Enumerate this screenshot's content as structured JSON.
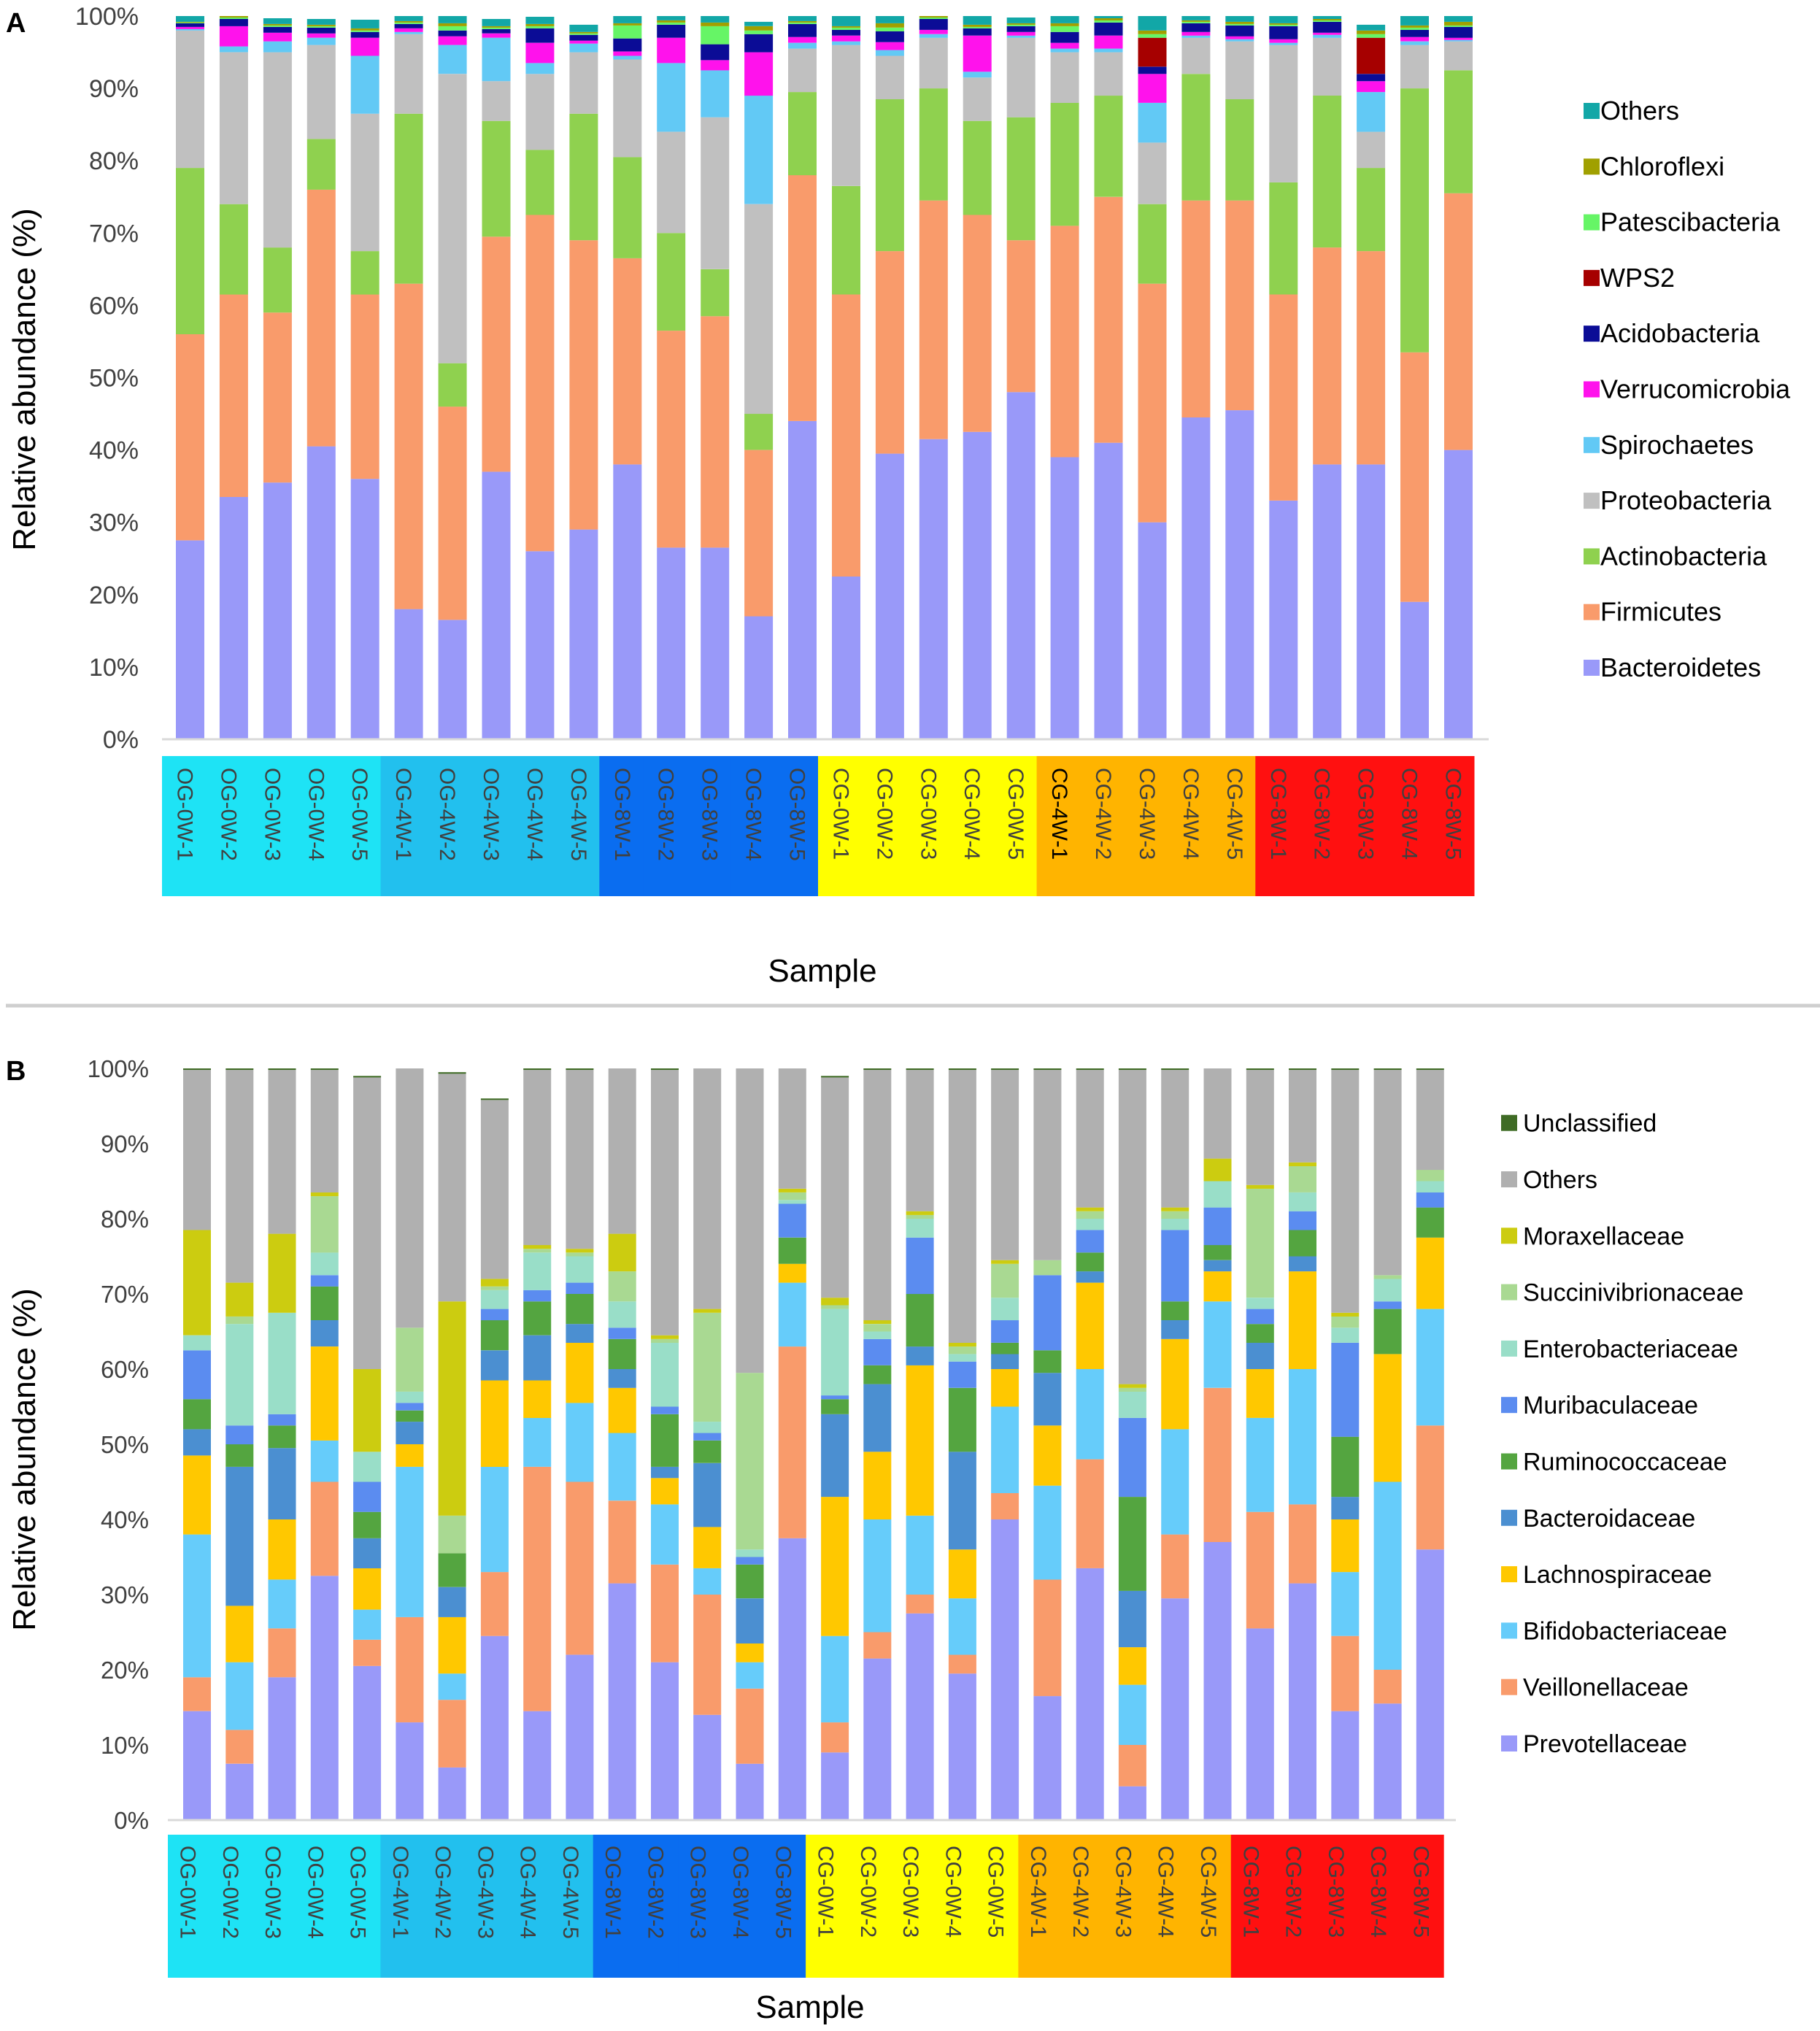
{
  "panels": {
    "a": {
      "letter": "A"
    },
    "b": {
      "letter": "B"
    }
  },
  "chart_data": [
    {
      "type": "bar",
      "stacked": true,
      "panel": "A",
      "title": "",
      "xlabel": "Sample",
      "ylabel": "Relative abundance (%)",
      "ylim": [
        0,
        100
      ],
      "yticks": [
        "0%",
        "10%",
        "20%",
        "30%",
        "40%",
        "50%",
        "60%",
        "70%",
        "80%",
        "90%",
        "100%"
      ],
      "categories": [
        "OG-0W-1",
        "OG-0W-2",
        "OG-0W-3",
        "OG-0W-4",
        "OG-0W-5",
        "OG-4W-1",
        "OG-4W-2",
        "OG-4W-3",
        "OG-4W-4",
        "OG-4W-5",
        "OG-8W-1",
        "OG-8W-2",
        "OG-8W-3",
        "OG-8W-4",
        "OG-8W-5",
        "CG-0W-1",
        "CG-0W-2",
        "CG-0W-3",
        "CG-0W-4",
        "CG-0W-5",
        "CG-4W-1",
        "CG-4W-2",
        "CG-4W-3",
        "CG-4W-4",
        "CG-4W-5",
        "CG-8W-1",
        "CG-8W-2",
        "CG-8W-3",
        "CG-8W-4",
        "CG-8W-5"
      ],
      "group_colors": [
        "#1ee3f5",
        "#1ee3f5",
        "#1ee3f5",
        "#1ee3f5",
        "#1ee3f5",
        "#22c0ee",
        "#22c0ee",
        "#22c0ee",
        "#22c0ee",
        "#22c0ee",
        "#0a6df0",
        "#0a6df0",
        "#0a6df0",
        "#0a6df0",
        "#0a6df0",
        "#ffff00",
        "#ffff00",
        "#ffff00",
        "#ffff00",
        "#ffff00",
        "#ffb400",
        "#ffb400",
        "#ffb400",
        "#ffb400",
        "#ffb400",
        "#ff1010",
        "#ff1010",
        "#ff1010",
        "#ff1010",
        "#ff1010"
      ],
      "label_colors": [
        "#404040",
        "#404040",
        "#404040",
        "#404040",
        "#404040",
        "#404040",
        "#404040",
        "#404040",
        "#404040",
        "#404040",
        "#404040",
        "#404040",
        "#404040",
        "#404040",
        "#404040",
        "#404040",
        "#404040",
        "#404040",
        "#404040",
        "#404040",
        "#000000",
        "#404040",
        "#404040",
        "#404040",
        "#404040",
        "#404040",
        "#404040",
        "#404040",
        "#404040",
        "#404040"
      ],
      "legend_position": "right",
      "series": [
        {
          "name": "Bacteroidetes",
          "color": "#9999f9",
          "values": [
            27.5,
            33.5,
            35.5,
            40.5,
            36,
            18,
            16.5,
            37,
            26,
            29,
            38,
            26.5,
            26.5,
            17,
            44,
            22.5,
            39.5,
            41.5,
            42.5,
            48,
            39,
            41,
            30,
            44.5,
            45.5,
            33,
            38,
            38,
            19,
            40
          ]
        },
        {
          "name": "Firmicutes",
          "color": "#f99b6b",
          "values": [
            28.5,
            28,
            23.5,
            35.5,
            25.5,
            45,
            29.5,
            32.5,
            46.5,
            40,
            28.5,
            30,
            32,
            23,
            34,
            39,
            28,
            33,
            30,
            21,
            32,
            34,
            33,
            30,
            29,
            28.5,
            30,
            29.5,
            34.5,
            35.5
          ]
        },
        {
          "name": "Actinobacteria",
          "color": "#8fd14f",
          "values": [
            23,
            12.5,
            9,
            7,
            6,
            23.5,
            6,
            16,
            9,
            17.5,
            14,
            13.5,
            6.5,
            5,
            11.5,
            15,
            21,
            15.5,
            13,
            17,
            17,
            14,
            11,
            17.5,
            14,
            15.5,
            21,
            11.5,
            36.5,
            17
          ]
        },
        {
          "name": "Proteobacteria",
          "color": "#c0c0c0",
          "values": [
            19,
            21,
            27,
            13,
            19,
            11,
            40,
            5.5,
            10.5,
            8.5,
            13.5,
            14,
            21,
            29,
            6,
            19.5,
            6,
            7,
            6,
            11,
            7,
            6,
            8.5,
            5,
            8,
            19,
            8,
            5,
            6,
            4
          ]
        },
        {
          "name": "Spirochaetes",
          "color": "#62c9f5",
          "values": [
            0.2,
            0.8,
            1.5,
            1,
            8,
            0.3,
            4,
            6,
            1.5,
            1.2,
            0.5,
            9.5,
            6.5,
            15,
            0.8,
            0.5,
            0.8,
            0.5,
            0.8,
            0.3,
            0.5,
            0.5,
            5.5,
            0.3,
            0.3,
            0.3,
            0.4,
            5.5,
            0.5,
            0.2
          ]
        },
        {
          "name": "Verrucomicrobia",
          "color": "#ff12ec",
          "values": [
            0.3,
            2.8,
            1.2,
            0.6,
            2.5,
            0.5,
            1.2,
            0.6,
            2.8,
            0.4,
            0.6,
            3.5,
            1.4,
            6,
            0.8,
            0.8,
            1.1,
            0.6,
            5,
            0.5,
            0.8,
            1.8,
            4,
            0.5,
            0.4,
            0.5,
            0.3,
            1.5,
            0.6,
            0.3
          ]
        },
        {
          "name": "Acidobacteria",
          "color": "#0b0c96",
          "values": [
            0.5,
            1,
            0.8,
            0.8,
            0.8,
            0.6,
            0.8,
            0.6,
            2,
            0.8,
            1.8,
            1.8,
            2.2,
            2.5,
            1.8,
            0.8,
            1.5,
            1.5,
            1,
            0.8,
            1.5,
            1.8,
            1,
            1.2,
            1.5,
            1.8,
            1.5,
            1,
            1,
            1.5
          ]
        },
        {
          "name": "WPS2",
          "color": "#a60000",
          "values": [
            0,
            0,
            0,
            0,
            0,
            0,
            0,
            0,
            0,
            0,
            0,
            0,
            0,
            0,
            0,
            0,
            0,
            0,
            0,
            0,
            0,
            0,
            4,
            0,
            0,
            0,
            0,
            5,
            0,
            0
          ]
        },
        {
          "name": "Patescibacteria",
          "color": "#66f566",
          "values": [
            0.1,
            0.2,
            0.2,
            0.2,
            0.2,
            0.2,
            0.6,
            0.2,
            0.3,
            0.2,
            1.8,
            0.3,
            2.5,
            0.5,
            0.2,
            0.3,
            0.5,
            0.2,
            0.2,
            0.2,
            0.8,
            0.3,
            0.5,
            0.2,
            0.2,
            0.2,
            0.2,
            0.5,
            0.3,
            0.2
          ]
        },
        {
          "name": "Chloroflexi",
          "color": "#a0a000",
          "values": [
            0.1,
            0.2,
            0.2,
            0.2,
            0.3,
            0.2,
            0.4,
            0.2,
            0.3,
            0.2,
            0.3,
            0.3,
            0.5,
            0.6,
            0.2,
            0.2,
            0.6,
            0.2,
            0.3,
            0.2,
            0.4,
            0.3,
            0.5,
            0.2,
            0.3,
            0.2,
            0.2,
            0.5,
            0.3,
            0.5
          ]
        },
        {
          "name": "Others",
          "color": "#12a7a7",
          "values": [
            0.8,
            0.8,
            0.8,
            0.8,
            1.2,
            0.7,
            1,
            1,
            1,
            1,
            2.5,
            0.6,
            1,
            0.6,
            1,
            1.4,
            1,
            0.8,
            1.2,
            0.8,
            1,
            0.3,
            2,
            0.6,
            0.8,
            1,
            0.4,
            0.8,
            1.3,
            0.8
          ]
        }
      ]
    },
    {
      "type": "bar",
      "stacked": true,
      "panel": "B",
      "title": "",
      "xlabel": "Sample",
      "ylabel": "Relative abundance (%)",
      "ylim": [
        0,
        100
      ],
      "yticks": [
        "0%",
        "10%",
        "20%",
        "30%",
        "40%",
        "50%",
        "60%",
        "70%",
        "80%",
        "90%",
        "100%"
      ],
      "categories": [
        "OG-0W-1",
        "OG-0W-2",
        "OG-0W-3",
        "OG-0W-4",
        "OG-0W-5",
        "OG-4W-1",
        "OG-4W-2",
        "OG-4W-3",
        "OG-4W-4",
        "OG-4W-5",
        "OG-8W-1",
        "OG-8W-2",
        "OG-8W-3",
        "OG-8W-4",
        "OG-8W-5",
        "CG-0W-1",
        "CG-0W-2",
        "CG-0W-3",
        "CG-0W-4",
        "CG-0W-5",
        "CG-4W-1",
        "CG-4W-2",
        "CG-4W-3",
        "CG-4W-4",
        "CG-4W-5",
        "CG-8W-1",
        "CG-8W-2",
        "CG-8W-3",
        "CG-8W-4",
        "CG-8W-5"
      ],
      "group_colors": [
        "#1ee3f5",
        "#1ee3f5",
        "#1ee3f5",
        "#1ee3f5",
        "#1ee3f5",
        "#22c0ee",
        "#22c0ee",
        "#22c0ee",
        "#22c0ee",
        "#22c0ee",
        "#0a6df0",
        "#0a6df0",
        "#0a6df0",
        "#0a6df0",
        "#0a6df0",
        "#ffff00",
        "#ffff00",
        "#ffff00",
        "#ffff00",
        "#ffff00",
        "#ffb400",
        "#ffb400",
        "#ffb400",
        "#ffb400",
        "#ffb400",
        "#ff1010",
        "#ff1010",
        "#ff1010",
        "#ff1010",
        "#ff1010"
      ],
      "label_colors": [
        "#404040",
        "#404040",
        "#404040",
        "#404040",
        "#404040",
        "#404040",
        "#404040",
        "#404040",
        "#404040",
        "#404040",
        "#404040",
        "#404040",
        "#404040",
        "#404040",
        "#404040",
        "#404040",
        "#404040",
        "#404040",
        "#404040",
        "#404040",
        "#404040",
        "#404040",
        "#404040",
        "#404040",
        "#404040",
        "#404040",
        "#404040",
        "#404040",
        "#404040",
        "#404040"
      ],
      "legend_position": "right",
      "series": [
        {
          "name": "Prevotellaceae",
          "color": "#9999f9",
          "values": [
            14.5,
            7.5,
            19,
            32.5,
            20.5,
            13,
            7,
            24.5,
            14.5,
            22,
            31.5,
            21,
            14,
            7.5,
            37.5,
            9,
            21.5,
            27.5,
            19.5,
            40,
            16.5,
            33.5,
            4.5,
            29.5,
            37,
            25.5,
            31.5,
            14.5,
            15.5,
            36
          ]
        },
        {
          "name": "Veillonellaceae",
          "color": "#f99b6b",
          "values": [
            4.5,
            4.5,
            6.5,
            12.5,
            3.5,
            14,
            9,
            8.5,
            32.5,
            23,
            11,
            13,
            16,
            10,
            25.5,
            4,
            3.5,
            2.5,
            2.5,
            3.5,
            15.5,
            14.5,
            5.5,
            8.5,
            20.5,
            15.5,
            10.5,
            10,
            4.5,
            16.5
          ]
        },
        {
          "name": "Bifidobacteriaceae",
          "color": "#66ccfa",
          "values": [
            19,
            9,
            6.5,
            5.5,
            4,
            20,
            3.5,
            14,
            6.5,
            10.5,
            9,
            8,
            3.5,
            3.5,
            8.5,
            11.5,
            15,
            10.5,
            7.5,
            11.5,
            12.5,
            12,
            8,
            14,
            11.5,
            12.5,
            18,
            8.5,
            25,
            15.5
          ]
        },
        {
          "name": "Lachnospiraceae",
          "color": "#ffc800",
          "values": [
            10.5,
            7.5,
            8,
            12.5,
            5.5,
            3,
            7.5,
            11.5,
            5,
            8,
            6,
            3.5,
            5.5,
            2.5,
            2.5,
            18.5,
            9,
            20,
            6.5,
            5,
            8,
            11.5,
            5,
            12,
            4,
            6.5,
            13,
            7,
            17,
            9.5
          ]
        },
        {
          "name": "Bacteroidaceae",
          "color": "#4b8fd1",
          "values": [
            3.5,
            18.5,
            9.5,
            3.5,
            4,
            3,
            4,
            4,
            6,
            2.5,
            2.5,
            1.5,
            8.5,
            6,
            0,
            11,
            9,
            2.5,
            13,
            2,
            7,
            1.5,
            7.5,
            2.5,
            1.5,
            3.5,
            2,
            3,
            0,
            0
          ]
        },
        {
          "name": "Ruminococcaceae",
          "color": "#54a540",
          "values": [
            4,
            3,
            3,
            4.5,
            3.5,
            1.5,
            4.5,
            4,
            4.5,
            4,
            4,
            7,
            3,
            4.5,
            3.5,
            2,
            2.5,
            7,
            8.5,
            1.5,
            3,
            2.5,
            12.5,
            2.5,
            2,
            2.5,
            3.5,
            8,
            6,
            4
          ]
        },
        {
          "name": "Muribaculaceae",
          "color": "#5b8cf0",
          "values": [
            6.5,
            2.5,
            1.5,
            1.5,
            4,
            1,
            0,
            1.5,
            1.5,
            1.5,
            1.5,
            1,
            1,
            1,
            4.5,
            0.5,
            3.5,
            7.5,
            3.5,
            3,
            10,
            3,
            10.5,
            9.5,
            5,
            2,
            2.5,
            12.5,
            1,
            2
          ]
        },
        {
          "name": "Enterobacteriaceae",
          "color": "#99dec8",
          "values": [
            2,
            13.5,
            13.5,
            3,
            4,
            1.5,
            0,
            2.5,
            5,
            3.5,
            3.5,
            8.5,
            1.5,
            1,
            0.5,
            11.5,
            1,
            2.5,
            1,
            3,
            0,
            1.5,
            3.5,
            1.5,
            3.5,
            1.5,
            2.5,
            2,
            3,
            1.5
          ]
        },
        {
          "name": "Succinivibrionaceae",
          "color": "#a9d992",
          "values": [
            0,
            1,
            0,
            7.5,
            0,
            8.5,
            5,
            0.5,
            0.5,
            0.5,
            4,
            0.5,
            14.5,
            23.5,
            1,
            0.5,
            1,
            0.5,
            1,
            4.5,
            2,
            1,
            0.5,
            1,
            0,
            14.5,
            3.5,
            1.5,
            0.5,
            1.5
          ]
        },
        {
          "name": "Moraxellaceae",
          "color": "#cccc10",
          "values": [
            14,
            4.5,
            10.5,
            0.5,
            11,
            0,
            28.5,
            1,
            0.5,
            0.5,
            5,
            0.5,
            0.5,
            0,
            0.5,
            1,
            0.5,
            0.5,
            0.5,
            0.5,
            0,
            0.5,
            0.5,
            0.5,
            3,
            0.5,
            0.5,
            0.5,
            0,
            0
          ]
        },
        {
          "name": "Others",
          "color": "#b0b0b0",
          "values": [
            21.3,
            28.3,
            21.8,
            16.3,
            38.8,
            34.8,
            30.3,
            23.8,
            23.3,
            23.8,
            22.3,
            35.3,
            32.3,
            40.8,
            16.3,
            29.3,
            33.3,
            18.8,
            36.3,
            25.3,
            25.3,
            18.3,
            41.8,
            18.3,
            12.8,
            15.3,
            12.3,
            32.3,
            27.3,
            13.3
          ]
        },
        {
          "name": "Unclassified",
          "color": "#3f6b25",
          "values": [
            0.2,
            0.2,
            0.2,
            0.2,
            0.2,
            0.2,
            0.2,
            0.2,
            0.2,
            0.2,
            0.2,
            0.2,
            0.2,
            0.2,
            0.2,
            0.2,
            0.2,
            0.2,
            0.2,
            0.2,
            0.2,
            0.2,
            0.2,
            0.2,
            0.2,
            0.2,
            0.2,
            0.2,
            0.2,
            0.2
          ]
        }
      ]
    }
  ]
}
